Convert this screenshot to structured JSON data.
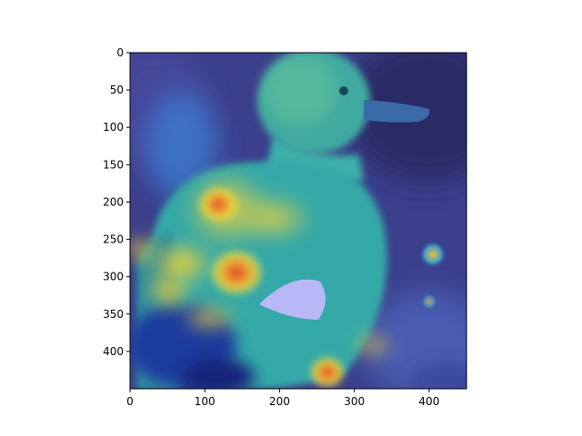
{
  "chart_data": {
    "type": "heatmap",
    "description_kind": "image overlay with saliency heatmap",
    "x_ticks": [
      0,
      100,
      200,
      300,
      400
    ],
    "y_ticks": [
      0,
      50,
      100,
      150,
      200,
      250,
      300,
      350,
      400
    ],
    "xlim": [
      0,
      450
    ],
    "ylim": [
      450,
      0
    ],
    "colormap": "jet",
    "grid": false,
    "colors": {
      "background_dark": "#2a2a6a",
      "heat_low": "#1f2a9a",
      "heat_mid": "#34c0b8",
      "heat_high": "#f2e23a",
      "heat_peak": "#d83a2a"
    }
  }
}
